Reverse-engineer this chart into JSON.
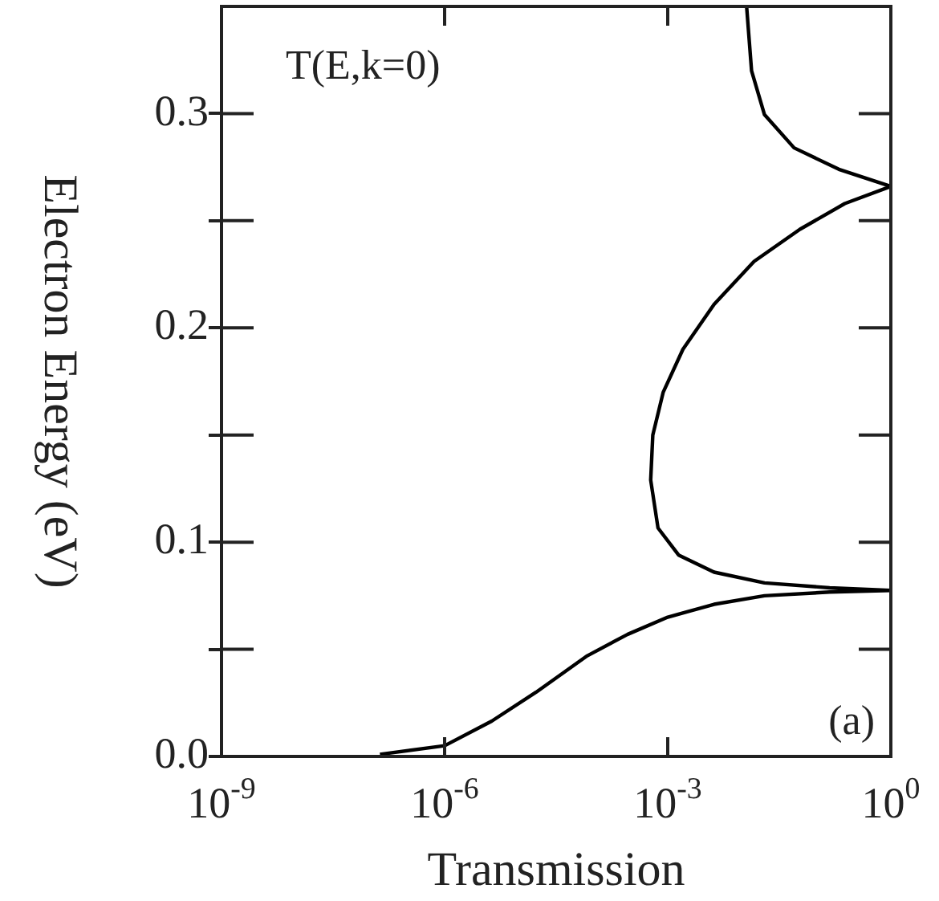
{
  "chart_data": {
    "type": "line",
    "xlabel": "Transmission",
    "ylabel": "Electron Energy (eV)",
    "log": "x",
    "annotations": [
      "T(E,k=0)",
      "(a)"
    ],
    "xlim": [
      1e-09,
      1
    ],
    "xticks": [
      {
        "value": 1e-09,
        "label": "10$^{-9}$"
      },
      {
        "value": 1e-06,
        "label": "10$^{-6}$"
      },
      {
        "value": 0.001,
        "label": "10$^{-3}$"
      },
      {
        "value": 1,
        "label": "10$^{0}$"
      }
    ],
    "ylim": [
      0,
      0.35
    ],
    "yticks": [
      {
        "value": 0,
        "label": "0.0"
      },
      {
        "value": 0.05,
        "label": null
      },
      {
        "value": 0.1,
        "label": "0.1"
      },
      {
        "value": 0.15,
        "label": null
      },
      {
        "value": 0.2,
        "label": "0.2"
      },
      {
        "value": 0.25,
        "label": null
      },
      {
        "value": 0.3,
        "label": "0.3"
      }
    ],
    "grid": false,
    "legend": false,
    "marker": "none",
    "line_style": "solid",
    "series": [
      {
        "color": "#000000",
        "x": [
          1.35e-07,
          1e-06,
          4.3e-06,
          1.7e-05,
          8.3e-05,
          0.00029,
          0.001,
          0.0042,
          0.02,
          0.15,
          1,
          0.15,
          0.02,
          0.0042,
          0.0014,
          0.00074,
          0.00059,
          0.00063,
          0.00087,
          0.0016,
          0.0042,
          0.0145,
          0.06,
          0.24,
          1,
          0.2,
          0.05,
          0.02,
          0.0134,
          0.0115
        ],
        "values": [
          0.001,
          0.005,
          0.0165,
          0.03,
          0.047,
          0.057,
          0.065,
          0.071,
          0.075,
          0.0767,
          0.0775,
          0.0787,
          0.081,
          0.086,
          0.094,
          0.1066,
          0.129,
          0.15,
          0.17,
          0.19,
          0.211,
          0.231,
          0.246,
          0.258,
          0.266,
          0.274,
          0.284,
          0.2995,
          0.32,
          0.35
        ]
      }
    ]
  }
}
